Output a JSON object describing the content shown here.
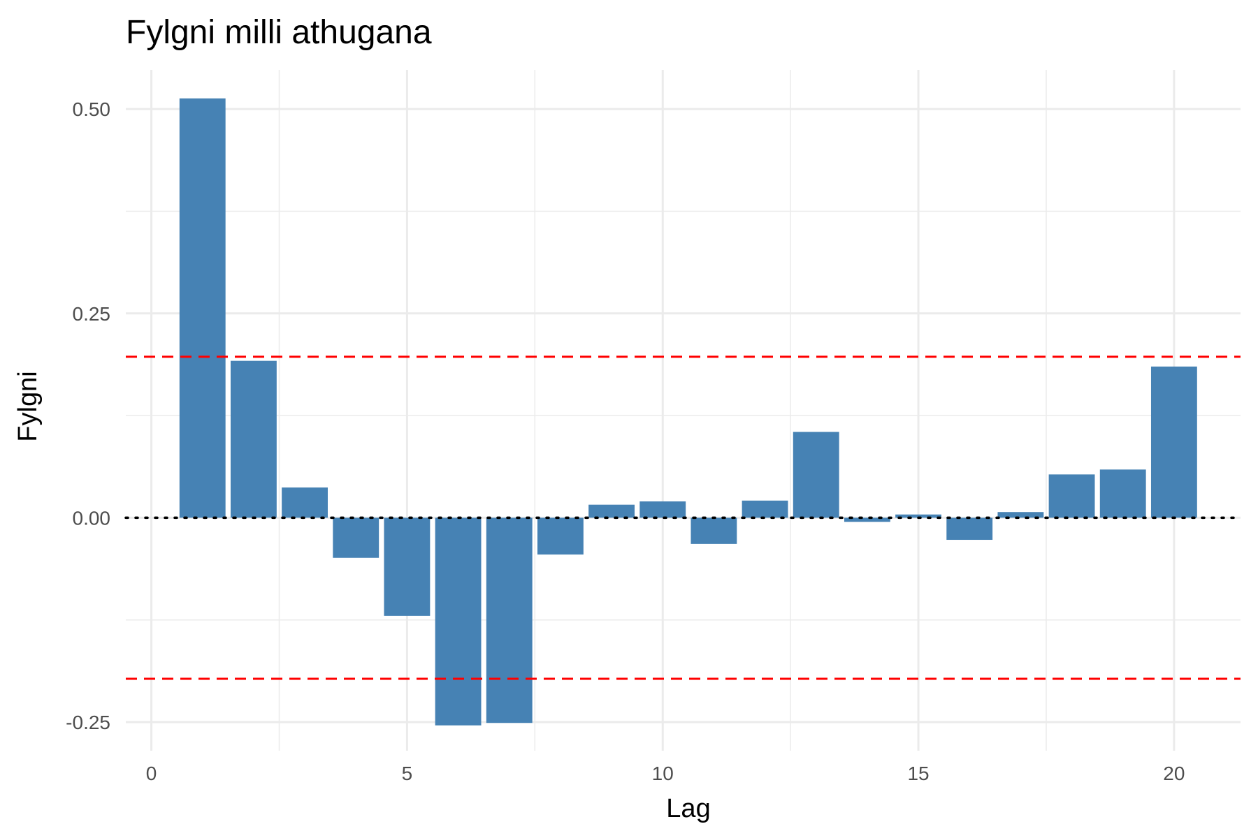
{
  "chart_data": {
    "type": "bar",
    "title": "Fylgni milli athugana",
    "xlabel": "Lag",
    "ylabel": "Fylgni",
    "x": [
      1,
      2,
      3,
      4,
      5,
      6,
      7,
      8,
      9,
      10,
      11,
      12,
      13,
      14,
      15,
      16,
      17,
      18,
      19,
      20
    ],
    "values": [
      0.513,
      0.192,
      0.037,
      -0.049,
      -0.12,
      -0.254,
      -0.251,
      -0.045,
      0.016,
      0.02,
      -0.032,
      0.021,
      0.105,
      -0.005,
      0.004,
      -0.027,
      0.007,
      0.053,
      0.059,
      0.185
    ],
    "xlim": [
      -0.5,
      21.3
    ],
    "ylim": [
      -0.285,
      0.548
    ],
    "xticks": [
      0,
      5,
      10,
      15,
      20
    ],
    "xtick_labels": [
      "0",
      "5",
      "10",
      "15",
      "20"
    ],
    "yticks": [
      -0.25,
      0,
      0.25,
      0.5
    ],
    "ytick_labels": [
      "-0.25",
      "0.00",
      "0.25",
      "0.50"
    ],
    "confidence_bound": 0.197,
    "zero_line": 0,
    "colors": {
      "bar": "#4682b4",
      "bound": "#ff0000",
      "zero": "#000000",
      "grid": "#ebebeb"
    }
  }
}
